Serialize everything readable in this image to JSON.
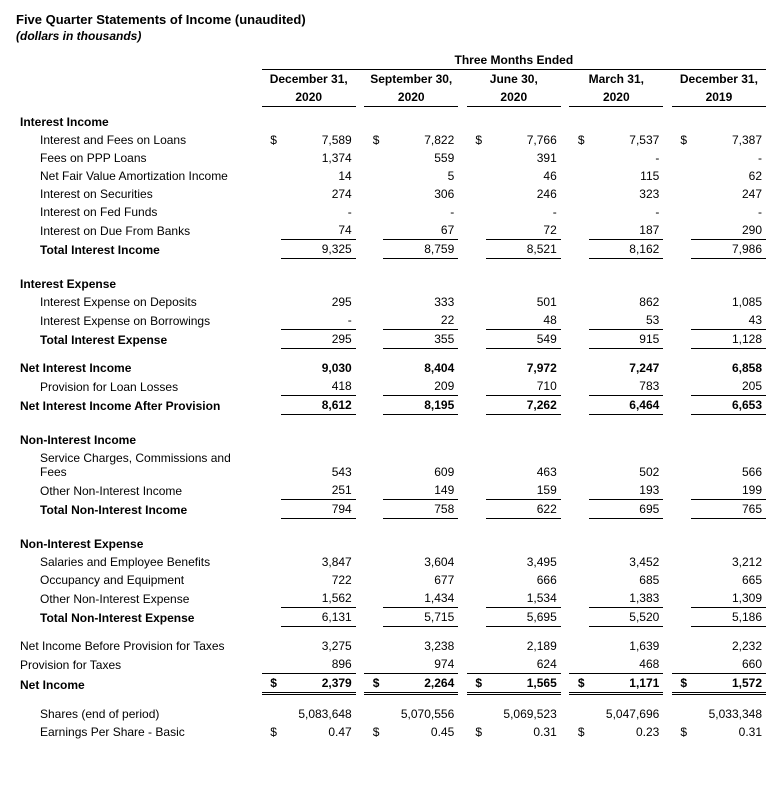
{
  "title": "Five Quarter Statements of Income (unaudited)",
  "subtitle": "(dollars in thousands)",
  "spanning_header": "Three Months Ended",
  "periods": [
    {
      "line1": "December 31,",
      "line2": "2020"
    },
    {
      "line1": "September 30,",
      "line2": "2020"
    },
    {
      "line1": "June 30,",
      "line2": "2020"
    },
    {
      "line1": "March 31,",
      "line2": "2020"
    },
    {
      "line1": "December 31,",
      "line2": "2019"
    }
  ],
  "sections": {
    "interest_income": {
      "header": "Interest Income",
      "rows": [
        {
          "label": "Interest and Fees on Loans",
          "sym": "$",
          "vals": [
            "7,589",
            "7,822",
            "7,766",
            "7,537",
            "7,387"
          ]
        },
        {
          "label": "Fees on PPP Loans",
          "vals": [
            "1,374",
            "559",
            "391",
            "-",
            "-"
          ]
        },
        {
          "label": "Net Fair Value Amortization Income",
          "vals": [
            "14",
            "5",
            "46",
            "115",
            "62"
          ]
        },
        {
          "label": "Interest on Securities",
          "vals": [
            "274",
            "306",
            "246",
            "323",
            "247"
          ]
        },
        {
          "label": "Interest on Fed Funds",
          "vals": [
            "-",
            "-",
            "-",
            "-",
            "-"
          ]
        },
        {
          "label": "Interest on Due From Banks",
          "vals": [
            "74",
            "67",
            "72",
            "187",
            "290"
          ],
          "underline": true
        }
      ],
      "total": {
        "label": "Total Interest Income",
        "vals": [
          "9,325",
          "8,759",
          "8,521",
          "8,162",
          "7,986"
        ],
        "underline": true
      }
    },
    "interest_expense": {
      "header": "Interest Expense",
      "rows": [
        {
          "label": "Interest Expense on Deposits",
          "vals": [
            "295",
            "333",
            "501",
            "862",
            "1,085"
          ]
        },
        {
          "label": "Interest Expense on Borrowings",
          "vals": [
            "-",
            "22",
            "48",
            "53",
            "43"
          ],
          "underline": true
        }
      ],
      "total": {
        "label": "Total Interest Expense",
        "vals": [
          "295",
          "355",
          "549",
          "915",
          "1,128"
        ],
        "underline": true
      }
    },
    "nii": {
      "label": "Net Interest Income",
      "vals": [
        "9,030",
        "8,404",
        "7,972",
        "7,247",
        "6,858"
      ]
    },
    "provision_ll": {
      "label": "Provision for Loan Losses",
      "vals": [
        "418",
        "209",
        "710",
        "783",
        "205"
      ],
      "underline": true
    },
    "nii_after": {
      "label": "Net Interest Income After Provision",
      "vals": [
        "8,612",
        "8,195",
        "7,262",
        "6,464",
        "6,653"
      ],
      "underline": true
    },
    "non_int_income": {
      "header": "Non-Interest Income",
      "rows": [
        {
          "label": "Service Charges, Commissions and Fees",
          "vals": [
            "543",
            "609",
            "463",
            "502",
            "566"
          ]
        },
        {
          "label": "Other Non-Interest Income",
          "vals": [
            "251",
            "149",
            "159",
            "193",
            "199"
          ],
          "underline": true
        }
      ],
      "total": {
        "label": "Total Non-Interest Income",
        "vals": [
          "794",
          "758",
          "622",
          "695",
          "765"
        ],
        "underline": true
      }
    },
    "non_int_expense": {
      "header": "Non-Interest Expense",
      "rows": [
        {
          "label": "Salaries and Employee Benefits",
          "vals": [
            "3,847",
            "3,604",
            "3,495",
            "3,452",
            "3,212"
          ]
        },
        {
          "label": "Occupancy and Equipment",
          "vals": [
            "722",
            "677",
            "666",
            "685",
            "665"
          ]
        },
        {
          "label": "Other Non-Interest Expense",
          "vals": [
            "1,562",
            "1,434",
            "1,534",
            "1,383",
            "1,309"
          ],
          "underline": true
        }
      ],
      "total": {
        "label": "Total Non-Interest Expense",
        "vals": [
          "6,131",
          "5,715",
          "5,695",
          "5,520",
          "5,186"
        ],
        "underline": true
      }
    },
    "pretax": {
      "label": "Net Income Before Provision for Taxes",
      "vals": [
        "3,275",
        "3,238",
        "2,189",
        "1,639",
        "2,232"
      ]
    },
    "tax": {
      "label": "Provision for Taxes",
      "vals": [
        "896",
        "974",
        "624",
        "468",
        "660"
      ],
      "underline": true
    },
    "net_income": {
      "label": "Net Income",
      "sym": "$",
      "vals": [
        "2,379",
        "2,264",
        "1,565",
        "1,171",
        "1,572"
      ]
    },
    "shares": {
      "label": "Shares (end of period)",
      "vals": [
        "5,083,648",
        "5,070,556",
        "5,069,523",
        "5,047,696",
        "5,033,348"
      ]
    },
    "eps": {
      "label": "Earnings Per Share - Basic",
      "sym": "$",
      "vals": [
        "0.47",
        "0.45",
        "0.31",
        "0.23",
        "0.31"
      ]
    }
  }
}
